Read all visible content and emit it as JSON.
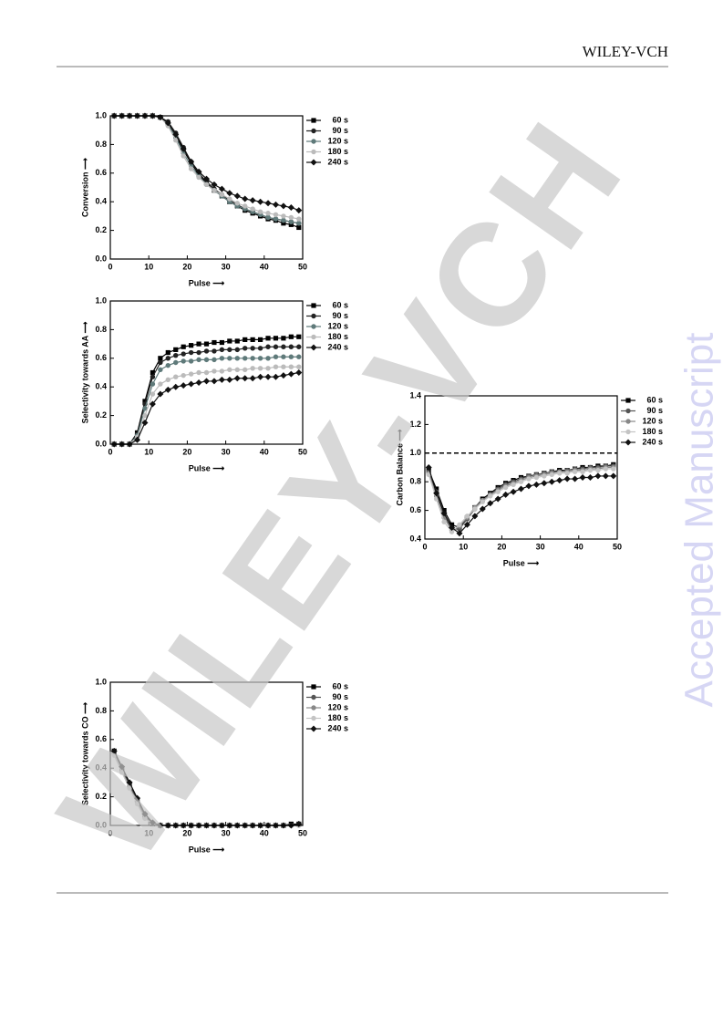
{
  "header": {
    "publisher": "WILEY-VCH"
  },
  "watermark": "WILEY-VCH",
  "side_label": "Accepted Manuscript",
  "chart_data": [
    {
      "type": "line",
      "x_label": "Pulse ⟶",
      "y_label": "Conversion ⟶",
      "xlim": [
        0,
        50
      ],
      "xticks": [
        0,
        10,
        20,
        30,
        40,
        50
      ],
      "ylim": [
        0,
        1
      ],
      "yticks": [
        {
          "value": 0,
          "label": "0.0"
        },
        0.2,
        0.4,
        0.6,
        0.8,
        {
          "value": 1,
          "label": "1.0"
        }
      ],
      "x": [
        1,
        3,
        5,
        7,
        9,
        11,
        13,
        15,
        17,
        19,
        21,
        23,
        25,
        27,
        29,
        31,
        33,
        35,
        37,
        39,
        41,
        43,
        45,
        47,
        49
      ],
      "series": [
        {
          "name": "60 s",
          "color": "#000000",
          "marker": "square",
          "values": [
            1,
            1,
            1,
            1,
            1,
            1,
            0.99,
            0.95,
            0.86,
            0.76,
            0.67,
            0.59,
            0.53,
            0.48,
            0.44,
            0.4,
            0.37,
            0.34,
            0.32,
            0.3,
            0.28,
            0.27,
            0.25,
            0.24,
            0.22
          ]
        },
        {
          "name": "90 s",
          "color": "#222222",
          "marker": "circle",
          "values": [
            1,
            1,
            1,
            1,
            1,
            1,
            0.99,
            0.96,
            0.88,
            0.78,
            0.68,
            0.6,
            0.54,
            0.49,
            0.45,
            0.41,
            0.38,
            0.35,
            0.33,
            0.31,
            0.29,
            0.28,
            0.27,
            0.26,
            0.25
          ]
        },
        {
          "name": "120 s",
          "color": "#5f7a7a",
          "marker": "circle",
          "values": [
            1,
            1,
            1,
            1,
            1,
            1,
            0.99,
            0.94,
            0.85,
            0.74,
            0.65,
            0.58,
            0.52,
            0.48,
            0.44,
            0.4,
            0.37,
            0.35,
            0.33,
            0.31,
            0.29,
            0.28,
            0.27,
            0.26,
            0.25
          ]
        },
        {
          "name": "180 s",
          "color": "#bbbbbb",
          "marker": "circle",
          "values": [
            1,
            1,
            1,
            1,
            1,
            1,
            0.99,
            0.93,
            0.83,
            0.72,
            0.63,
            0.57,
            0.52,
            0.48,
            0.45,
            0.42,
            0.39,
            0.37,
            0.35,
            0.33,
            0.32,
            0.31,
            0.3,
            0.29,
            0.28
          ]
        },
        {
          "name": "240 s",
          "color": "#111111",
          "marker": "diamond",
          "values": [
            1,
            1,
            1,
            1,
            1,
            1,
            0.99,
            0.95,
            0.87,
            0.77,
            0.68,
            0.61,
            0.56,
            0.52,
            0.49,
            0.46,
            0.44,
            0.42,
            0.41,
            0.4,
            0.39,
            0.38,
            0.37,
            0.36,
            0.34
          ]
        }
      ]
    },
    {
      "type": "line",
      "x_label": "Pulse ⟶",
      "y_label": "Selectivity towards AA ⟶",
      "xlim": [
        0,
        50
      ],
      "xticks": [
        0,
        10,
        20,
        30,
        40,
        50
      ],
      "ylim": [
        0,
        1
      ],
      "yticks": [
        {
          "value": 0,
          "label": "0.0"
        },
        0.2,
        0.4,
        0.6,
        0.8,
        {
          "value": 1,
          "label": "1.0"
        }
      ],
      "x": [
        1,
        3,
        5,
        7,
        9,
        11,
        13,
        15,
        17,
        19,
        21,
        23,
        25,
        27,
        29,
        31,
        33,
        35,
        37,
        39,
        41,
        43,
        45,
        47,
        49
      ],
      "series": [
        {
          "name": "60 s",
          "color": "#000000",
          "marker": "square",
          "values": [
            0,
            0,
            0,
            0.08,
            0.3,
            0.5,
            0.6,
            0.64,
            0.66,
            0.68,
            0.69,
            0.7,
            0.7,
            0.71,
            0.71,
            0.72,
            0.72,
            0.73,
            0.73,
            0.73,
            0.74,
            0.74,
            0.74,
            0.75,
            0.75
          ]
        },
        {
          "name": "90 s",
          "color": "#222222",
          "marker": "circle",
          "values": [
            0,
            0,
            0,
            0.07,
            0.28,
            0.47,
            0.57,
            0.6,
            0.62,
            0.63,
            0.64,
            0.64,
            0.65,
            0.65,
            0.66,
            0.66,
            0.66,
            0.67,
            0.67,
            0.67,
            0.68,
            0.68,
            0.68,
            0.68,
            0.68
          ]
        },
        {
          "name": "120 s",
          "color": "#5f7a7a",
          "marker": "circle",
          "values": [
            0,
            0,
            0,
            0.06,
            0.25,
            0.42,
            0.52,
            0.55,
            0.57,
            0.58,
            0.58,
            0.59,
            0.59,
            0.59,
            0.6,
            0.6,
            0.6,
            0.6,
            0.6,
            0.6,
            0.6,
            0.61,
            0.61,
            0.61,
            0.61
          ]
        },
        {
          "name": "180 s",
          "color": "#bbbbbb",
          "marker": "circle",
          "values": [
            0,
            0,
            0,
            0.05,
            0.2,
            0.35,
            0.42,
            0.45,
            0.47,
            0.48,
            0.49,
            0.5,
            0.5,
            0.51,
            0.51,
            0.52,
            0.52,
            0.52,
            0.53,
            0.53,
            0.53,
            0.54,
            0.54,
            0.54,
            0.54
          ]
        },
        {
          "name": "240 s",
          "color": "#111111",
          "marker": "diamond",
          "values": [
            0,
            0,
            0,
            0.03,
            0.15,
            0.28,
            0.35,
            0.38,
            0.4,
            0.41,
            0.42,
            0.43,
            0.44,
            0.44,
            0.45,
            0.45,
            0.46,
            0.46,
            0.46,
            0.47,
            0.47,
            0.47,
            0.48,
            0.49,
            0.5
          ]
        }
      ]
    },
    {
      "type": "line",
      "x_label": "Pulse ⟶",
      "y_label": "Carbon Balance ⟶",
      "xlim": [
        0,
        50
      ],
      "xticks": [
        0,
        10,
        20,
        30,
        40,
        50
      ],
      "ylim": [
        0.4,
        1.4
      ],
      "yticks": [
        0.4,
        0.6,
        0.8,
        {
          "value": 1,
          "label": "1.0"
        },
        1.2,
        1.4
      ],
      "hline": 1,
      "x": [
        1,
        3,
        5,
        7,
        9,
        11,
        13,
        15,
        17,
        19,
        21,
        23,
        25,
        27,
        29,
        31,
        33,
        35,
        37,
        39,
        41,
        43,
        45,
        47,
        49
      ],
      "series": [
        {
          "name": "60 s",
          "color": "#000000",
          "marker": "square",
          "values": [
            0.88,
            0.75,
            0.6,
            0.5,
            0.48,
            0.55,
            0.62,
            0.68,
            0.72,
            0.76,
            0.79,
            0.81,
            0.83,
            0.84,
            0.85,
            0.86,
            0.87,
            0.88,
            0.88,
            0.89,
            0.9,
            0.9,
            0.91,
            0.91,
            0.92
          ]
        },
        {
          "name": "90 s",
          "color": "#555555",
          "marker": "circle",
          "values": [
            0.87,
            0.73,
            0.57,
            0.47,
            0.47,
            0.54,
            0.61,
            0.67,
            0.71,
            0.75,
            0.78,
            0.8,
            0.82,
            0.84,
            0.85,
            0.86,
            0.87,
            0.87,
            0.88,
            0.89,
            0.89,
            0.9,
            0.9,
            0.91,
            0.91
          ]
        },
        {
          "name": "120 s",
          "color": "#888888",
          "marker": "circle",
          "values": [
            0.86,
            0.7,
            0.55,
            0.46,
            0.49,
            0.55,
            0.62,
            0.67,
            0.71,
            0.74,
            0.77,
            0.79,
            0.81,
            0.83,
            0.84,
            0.85,
            0.86,
            0.87,
            0.87,
            0.88,
            0.88,
            0.89,
            0.89,
            0.9,
            0.9
          ]
        },
        {
          "name": "180 s",
          "color": "#c4c4c4",
          "marker": "circle",
          "values": [
            0.85,
            0.68,
            0.52,
            0.45,
            0.5,
            0.56,
            0.61,
            0.66,
            0.7,
            0.73,
            0.76,
            0.78,
            0.8,
            0.82,
            0.83,
            0.84,
            0.85,
            0.86,
            0.86,
            0.87,
            0.87,
            0.88,
            0.88,
            0.89,
            0.89
          ]
        },
        {
          "name": "240 s",
          "color": "#111111",
          "marker": "diamond",
          "values": [
            0.9,
            0.72,
            0.58,
            0.48,
            0.44,
            0.5,
            0.56,
            0.61,
            0.65,
            0.68,
            0.71,
            0.73,
            0.75,
            0.77,
            0.78,
            0.79,
            0.8,
            0.81,
            0.82,
            0.82,
            0.83,
            0.83,
            0.84,
            0.84,
            0.84
          ]
        }
      ]
    },
    {
      "type": "line",
      "x_label": "Pulse ⟶",
      "y_label": "Selectivity towards CO ⟶",
      "xlim": [
        0,
        50
      ],
      "xticks": [
        0,
        10,
        20,
        30,
        40,
        50
      ],
      "ylim": [
        0,
        1
      ],
      "yticks": [
        {
          "value": 0,
          "label": "0.0"
        },
        0.2,
        0.4,
        0.6,
        0.8,
        {
          "value": 1,
          "label": "1.0"
        }
      ],
      "x": [
        1,
        3,
        5,
        7,
        9,
        11,
        13,
        15,
        17,
        19,
        21,
        23,
        25,
        27,
        29,
        31,
        33,
        35,
        37,
        39,
        41,
        43,
        45,
        47,
        49
      ],
      "series": [
        {
          "name": "60 s",
          "color": "#000000",
          "marker": "square",
          "values": [
            0.52,
            0.4,
            0.29,
            0.18,
            0.07,
            0.01,
            0,
            0,
            0,
            0,
            0,
            0,
            0,
            0,
            0,
            0,
            0,
            0,
            0,
            0,
            0,
            0,
            0,
            0.01,
            0.01
          ]
        },
        {
          "name": "90 s",
          "color": "#555555",
          "marker": "circle",
          "values": [
            0.51,
            0.39,
            0.28,
            0.17,
            0.06,
            0.01,
            0,
            0,
            0,
            0,
            0,
            0,
            0,
            0,
            0,
            0,
            0,
            0,
            0,
            0,
            0,
            0,
            0,
            0,
            0.01
          ]
        },
        {
          "name": "120 s",
          "color": "#888888",
          "marker": "circle",
          "values": [
            0.5,
            0.38,
            0.27,
            0.16,
            0.05,
            0.01,
            0,
            0,
            0,
            0,
            0,
            0,
            0,
            0,
            0,
            0,
            0,
            0,
            0,
            0,
            0,
            0,
            0,
            0,
            0
          ]
        },
        {
          "name": "180 s",
          "color": "#c4c4c4",
          "marker": "circle",
          "values": [
            0.49,
            0.37,
            0.26,
            0.15,
            0.05,
            0.01,
            0,
            0,
            0,
            0,
            0,
            0,
            0,
            0,
            0,
            0,
            0,
            0,
            0,
            0,
            0,
            0,
            0,
            0,
            0
          ]
        },
        {
          "name": "240 s",
          "color": "#111111",
          "marker": "diamond",
          "values": [
            0.52,
            0.41,
            0.3,
            0.19,
            0.08,
            0.02,
            0,
            0,
            0,
            0,
            0,
            0,
            0,
            0,
            0,
            0,
            0,
            0,
            0,
            0,
            0,
            0,
            0,
            0,
            0.01
          ]
        }
      ]
    }
  ]
}
